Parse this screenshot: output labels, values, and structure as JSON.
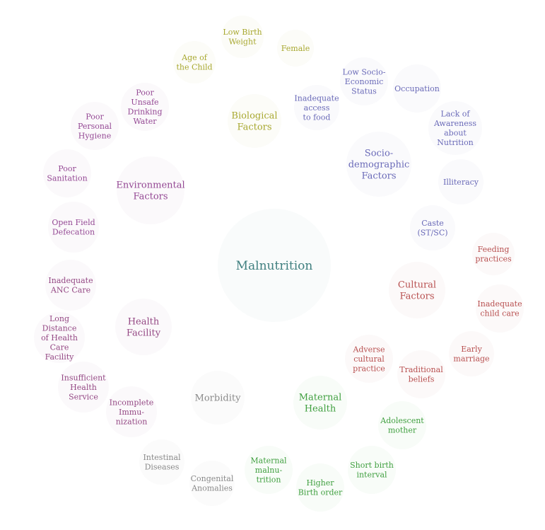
{
  "diagram": {
    "center": {
      "id": "malnutrition",
      "lines": [
        "Malnutrition"
      ],
      "color": "#3f7f7f"
    },
    "hubs": [
      {
        "id": "biological-factors",
        "lines": [
          "Biological",
          "Factors"
        ],
        "color": "#a8a830"
      },
      {
        "id": "socio-demographic-factors",
        "lines": [
          "Socio-",
          "demographic",
          "Factors"
        ],
        "color": "#6a6ab8"
      },
      {
        "id": "environmental-factors",
        "lines": [
          "Environmental",
          "Factors"
        ],
        "color": "#944894"
      },
      {
        "id": "cultural-factors",
        "lines": [
          "Cultural",
          "Factors"
        ],
        "color": "#b85050"
      },
      {
        "id": "health-facility",
        "lines": [
          "Health",
          "Facility"
        ],
        "color": "#944884"
      },
      {
        "id": "maternal-health",
        "lines": [
          "Maternal",
          "Health"
        ],
        "color": "#3f9f3f"
      },
      {
        "id": "morbidity",
        "lines": [
          "Morbidity"
        ],
        "color": "#8a8a8a"
      }
    ],
    "leaves": [
      {
        "id": "low-birth-weight",
        "lines": [
          "Low Birth",
          "Weight"
        ],
        "color": "#a8a830"
      },
      {
        "id": "female",
        "lines": [
          "Female"
        ],
        "color": "#a8a830"
      },
      {
        "id": "age-of-child",
        "lines": [
          "Age of",
          "the Child"
        ],
        "color": "#a8a830"
      },
      {
        "id": "inadequate-access-food",
        "lines": [
          "Inadequate",
          "access",
          "to food"
        ],
        "color": "#6a6ab8"
      },
      {
        "id": "low-socio-economic-status",
        "lines": [
          "Low Socio-",
          "Economic",
          "Status"
        ],
        "color": "#6a6ab8"
      },
      {
        "id": "occupation",
        "lines": [
          "Occupation"
        ],
        "color": "#6a6ab8"
      },
      {
        "id": "lack-of-awareness",
        "lines": [
          "Lack of",
          "Awareness",
          "about",
          "Nutrition"
        ],
        "color": "#6a6ab8"
      },
      {
        "id": "illiteracy",
        "lines": [
          "Illiteracy"
        ],
        "color": "#6a6ab8"
      },
      {
        "id": "caste",
        "lines": [
          "Caste",
          "(ST/SC)"
        ],
        "color": "#6a6ab8"
      },
      {
        "id": "poor-unsafe-water",
        "lines": [
          "Poor",
          "Unsafe",
          "Drinking",
          "Water"
        ],
        "color": "#944894"
      },
      {
        "id": "poor-personal-hygiene",
        "lines": [
          "Poor",
          "Personal",
          "Hygiene"
        ],
        "color": "#944894"
      },
      {
        "id": "poor-sanitation",
        "lines": [
          "Poor",
          "Sanitation"
        ],
        "color": "#944894"
      },
      {
        "id": "open-field-defecation",
        "lines": [
          "Open Field",
          "Defecation"
        ],
        "color": "#944894"
      },
      {
        "id": "feeding-practices",
        "lines": [
          "Feeding",
          "practices"
        ],
        "color": "#b85050"
      },
      {
        "id": "inadequate-child-care",
        "lines": [
          "Inadequate",
          "child care"
        ],
        "color": "#b85050"
      },
      {
        "id": "early-marriage",
        "lines": [
          "Early",
          "marriage"
        ],
        "color": "#b85050"
      },
      {
        "id": "traditional-beliefs",
        "lines": [
          "Traditional",
          "beliefs"
        ],
        "color": "#b85050"
      },
      {
        "id": "adverse-cultural-practice",
        "lines": [
          "Adverse",
          "cultural",
          "practice"
        ],
        "color": "#b85050"
      },
      {
        "id": "inadequate-anc-care",
        "lines": [
          "Inadequate",
          "ANC Care"
        ],
        "color": "#944884"
      },
      {
        "id": "long-distance-health-care",
        "lines": [
          "Long",
          "Distance",
          "of Health",
          "Care",
          "Facility"
        ],
        "color": "#944884"
      },
      {
        "id": "insufficient-health-service",
        "lines": [
          "Insufficient",
          "Health",
          "Service"
        ],
        "color": "#944884"
      },
      {
        "id": "incomplete-immunization",
        "lines": [
          "Incomplete",
          "Immu-",
          "nization"
        ],
        "color": "#944884"
      },
      {
        "id": "adolescent-mother",
        "lines": [
          "Adolescent",
          "mother"
        ],
        "color": "#3f9f3f"
      },
      {
        "id": "short-birth-interval",
        "lines": [
          "Short birth",
          "interval"
        ],
        "color": "#3f9f3f"
      },
      {
        "id": "higher-birth-order",
        "lines": [
          "Higher",
          "Birth order"
        ],
        "color": "#3f9f3f"
      },
      {
        "id": "maternal-malnutrition",
        "lines": [
          "Maternal",
          "malnu-",
          "trition"
        ],
        "color": "#3f9f3f"
      },
      {
        "id": "intestinal-diseases",
        "lines": [
          "Intestinal",
          "Diseases"
        ],
        "color": "#8a8a8a"
      },
      {
        "id": "congenital-anomalies",
        "lines": [
          "Congenital",
          "Anomalies"
        ],
        "color": "#8a8a8a"
      }
    ]
  }
}
